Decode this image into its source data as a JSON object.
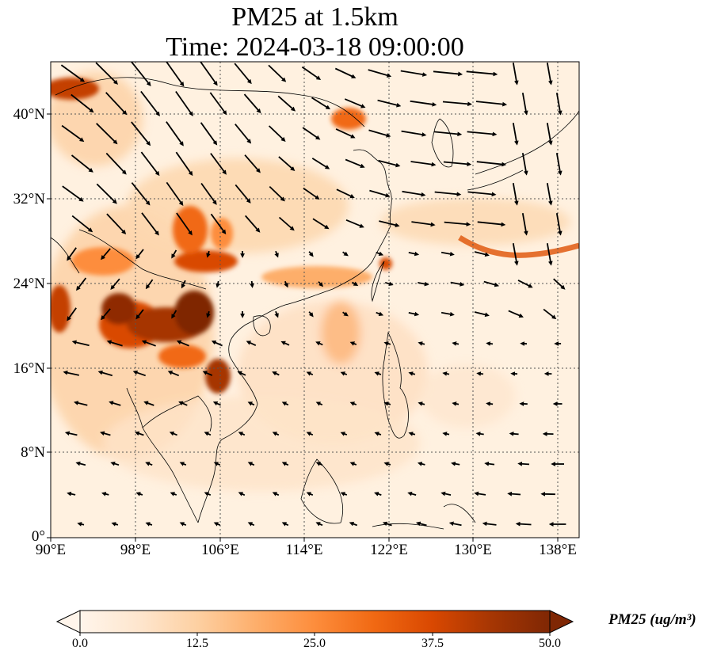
{
  "title": {
    "line1": "PM25 at 1.5km",
    "line2": "Time: 2024-03-18 09:00:00"
  },
  "map": {
    "lat_labels": [
      "40°N",
      "32°N",
      "24°N",
      "16°N",
      "8°N",
      "0°"
    ],
    "lon_labels": [
      "90°E",
      "98°E",
      "106°E",
      "114°E",
      "122°E",
      "130°E",
      "138°E"
    ],
    "extent": {
      "lon_min": 90,
      "lon_max": 140,
      "lat_min": 0,
      "lat_max": 45
    }
  },
  "colorbar": {
    "label": "PM25 (ug/m³)",
    "ticks": [
      "0.0",
      "12.5",
      "25.0",
      "37.5",
      "50.0"
    ],
    "min": 0.0,
    "max": 50.0,
    "colors": [
      "#fff5eb",
      "#fee6ce",
      "#fdd0a2",
      "#fdae6b",
      "#fd8d3c",
      "#f16913",
      "#d94801",
      "#a63603",
      "#7f2704"
    ]
  }
}
